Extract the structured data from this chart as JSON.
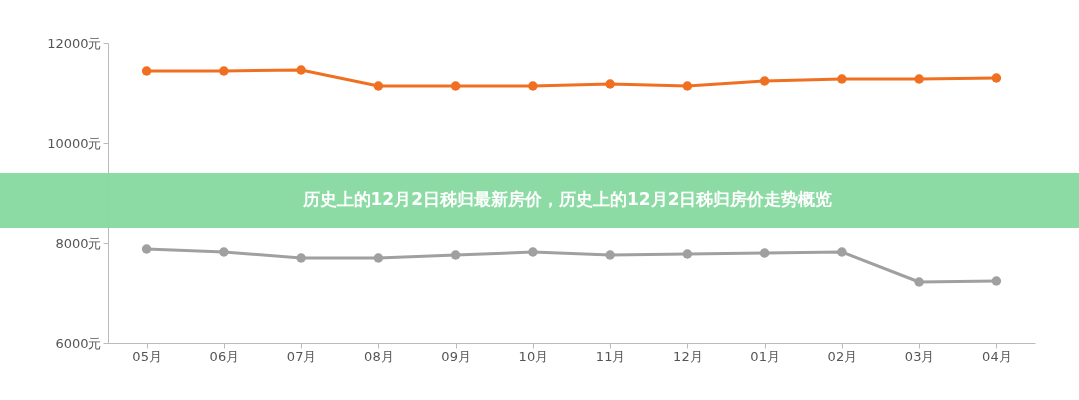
{
  "chart_data": {
    "type": "line",
    "title": "历史上的12月2日秭归最新房价，历史上的12月2日秭归房价走势概览",
    "categories": [
      "05月",
      "06月",
      "07月",
      "08月",
      "09月",
      "10月",
      "11月",
      "12月",
      "01月",
      "02月",
      "03月",
      "04月"
    ],
    "series": [
      {
        "color": "#f07022",
        "values": [
          11440,
          11440,
          11460,
          11140,
          11140,
          11140,
          11180,
          11140,
          11240,
          11280,
          11280,
          11300
        ]
      },
      {
        "color": "#a0a0a0",
        "values": [
          7880,
          7820,
          7700,
          7700,
          7760,
          7820,
          7760,
          7780,
          7800,
          7820,
          7220,
          7240
        ]
      }
    ],
    "ylim": [
      6000,
      12000
    ],
    "yticks": [
      {
        "value": 6000,
        "label": "6000元"
      },
      {
        "value": 8000,
        "label": "8000元"
      },
      {
        "value": 10000,
        "label": "10000元"
      },
      {
        "value": 12000,
        "label": "12000元"
      }
    ],
    "grid": false,
    "legend": false,
    "marker": "circle",
    "line_style": "solid"
  }
}
